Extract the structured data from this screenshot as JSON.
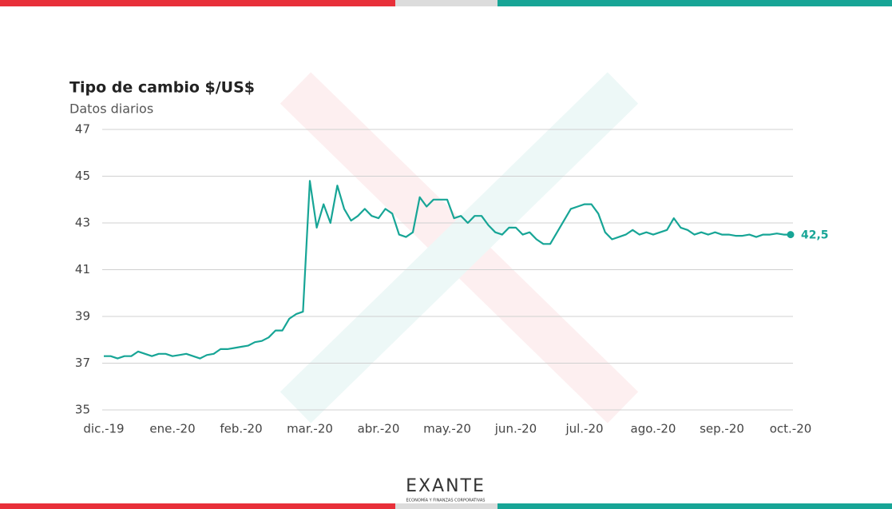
{
  "chart_data": {
    "type": "line",
    "title": "Tipo de cambio $/US$",
    "subtitle": "Datos diarios",
    "categories": [
      "dic.-19",
      null,
      null,
      null,
      null,
      null,
      null,
      null,
      null,
      null,
      "ene.-20",
      null,
      null,
      null,
      null,
      null,
      null,
      null,
      null,
      null,
      "feb.-20",
      null,
      null,
      null,
      null,
      null,
      null,
      null,
      null,
      null,
      "mar.-20",
      null,
      null,
      null,
      null,
      null,
      null,
      null,
      null,
      null,
      "abr.-20",
      null,
      null,
      null,
      null,
      null,
      null,
      null,
      null,
      null,
      "may.-20",
      null,
      null,
      null,
      null,
      null,
      null,
      null,
      null,
      null,
      "jun.-20",
      null,
      null,
      null,
      null,
      null,
      null,
      null,
      null,
      null,
      "jul.-20",
      null,
      null,
      null,
      null,
      null,
      null,
      null,
      null,
      null,
      "ago.-20",
      null,
      null,
      null,
      null,
      null,
      null,
      null,
      null,
      null,
      "sep.-20",
      null,
      null,
      null,
      null,
      null,
      null,
      null,
      null,
      null,
      "oct.-20"
    ],
    "values": [
      37.3,
      37.3,
      37.2,
      37.3,
      37.3,
      37.5,
      37.4,
      37.3,
      37.4,
      37.4,
      37.3,
      37.35,
      37.4,
      37.3,
      37.2,
      37.35,
      37.4,
      37.6,
      37.6,
      37.65,
      37.7,
      37.75,
      37.9,
      37.95,
      38.1,
      38.4,
      38.4,
      38.9,
      39.1,
      39.2,
      44.8,
      42.8,
      43.8,
      43.0,
      44.6,
      43.6,
      43.1,
      43.3,
      43.6,
      43.3,
      43.2,
      43.6,
      43.4,
      42.5,
      42.4,
      42.6,
      44.1,
      43.7,
      44.0,
      44.0,
      44.0,
      43.2,
      43.3,
      43.0,
      43.3,
      43.3,
      42.9,
      42.6,
      42.5,
      42.8,
      42.8,
      42.5,
      42.6,
      42.3,
      42.1,
      42.1,
      42.6,
      43.1,
      43.6,
      43.7,
      43.8,
      43.8,
      43.4,
      42.6,
      42.3,
      42.4,
      42.5,
      42.7,
      42.5,
      42.6,
      42.5,
      42.6,
      42.7,
      43.2,
      42.8,
      42.7,
      42.5,
      42.6,
      42.5,
      42.6,
      42.5,
      42.5,
      42.45,
      42.45,
      42.5,
      42.4,
      42.5,
      42.5,
      42.55,
      42.5,
      42.5
    ],
    "value_labels": [
      null,
      null,
      null,
      null,
      null,
      null,
      null,
      null,
      null,
      null,
      null,
      null,
      null,
      null,
      null,
      null,
      null,
      null,
      null,
      null,
      null,
      null,
      null,
      null,
      null,
      null,
      null,
      null,
      null,
      null,
      null,
      null,
      null,
      null,
      null,
      null,
      null,
      null,
      null,
      null,
      null,
      null,
      null,
      null,
      null,
      null,
      null,
      null,
      null,
      null,
      null,
      null,
      null,
      null,
      null,
      null,
      null,
      null,
      null,
      null,
      null,
      null,
      null,
      null,
      null,
      null,
      null,
      null,
      null,
      null,
      null,
      null,
      null,
      null,
      null,
      null,
      null,
      null,
      null,
      null,
      null,
      null,
      null,
      null,
      null,
      null,
      null,
      null,
      null,
      null,
      null,
      null,
      null,
      null,
      null,
      null,
      null,
      null,
      null,
      null,
      "42,5"
    ],
    "color": "#17a596",
    "ylim": [
      35,
      47
    ],
    "yticks": [
      35,
      37,
      39,
      41,
      43,
      45,
      47
    ],
    "grid": true
  },
  "logo": {
    "name": "EXANTE",
    "tagline": "ECONOMÍA Y FINANZAS CORPORATIVAS"
  }
}
